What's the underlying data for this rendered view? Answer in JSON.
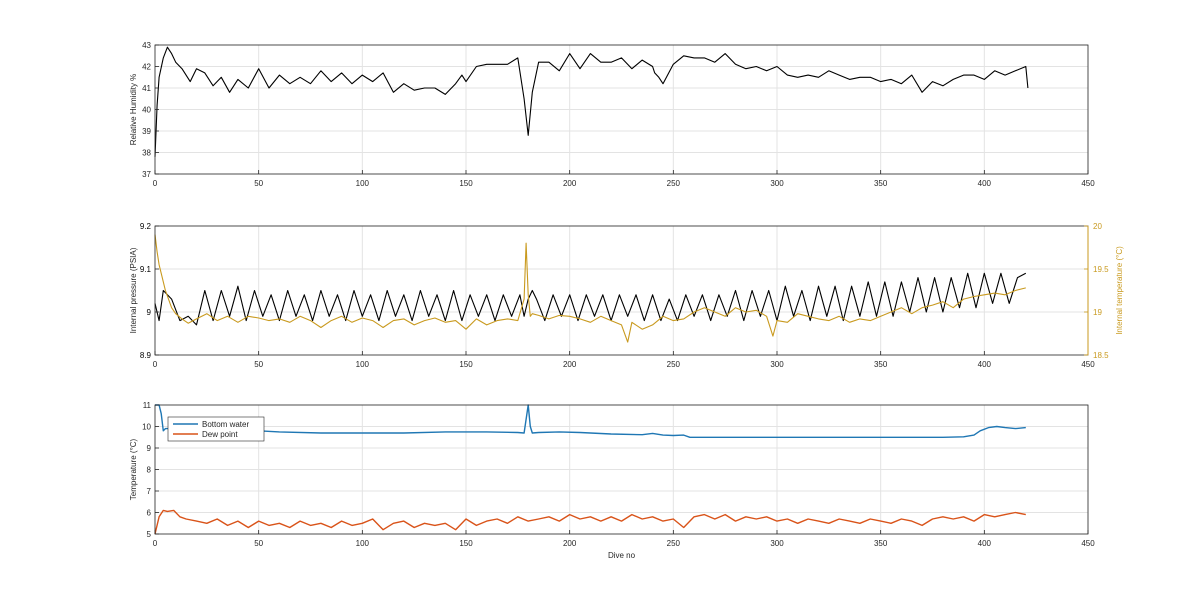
{
  "chart_data": [
    {
      "type": "line",
      "xlabel": "",
      "ylabel": "Relative Humidity %",
      "xlim": [
        0,
        450
      ],
      "ylim": [
        37,
        43
      ],
      "x_ticks": [
        0,
        50,
        100,
        150,
        200,
        250,
        300,
        350,
        400,
        450
      ],
      "y_ticks": [
        37,
        38,
        39,
        40,
        41,
        42,
        43
      ],
      "grid": true,
      "series": [
        {
          "color": "#000000",
          "x": [
            0,
            1,
            2,
            4,
            6,
            8,
            10,
            13,
            17,
            20,
            24,
            28,
            32,
            36,
            40,
            45,
            50,
            55,
            60,
            65,
            70,
            75,
            80,
            85,
            90,
            95,
            100,
            105,
            110,
            115,
            120,
            125,
            130,
            135,
            140,
            145,
            148,
            150,
            155,
            160,
            165,
            170,
            175,
            178,
            180,
            182,
            185,
            190,
            195,
            200,
            205,
            210,
            215,
            220,
            225,
            230,
            235,
            240,
            241,
            243,
            245,
            250,
            255,
            260,
            265,
            270,
            275,
            280,
            285,
            290,
            295,
            300,
            305,
            310,
            315,
            320,
            325,
            330,
            335,
            340,
            345,
            350,
            355,
            360,
            365,
            370,
            375,
            380,
            385,
            390,
            395,
            400,
            405,
            410,
            415,
            420,
            421
          ],
          "y": [
            37.8,
            40.2,
            41.5,
            42.4,
            42.9,
            42.6,
            42.2,
            41.9,
            41.3,
            41.9,
            41.7,
            41.1,
            41.5,
            40.8,
            41.4,
            41.0,
            41.9,
            41.0,
            41.6,
            41.2,
            41.5,
            41.2,
            41.8,
            41.3,
            41.7,
            41.2,
            41.6,
            41.3,
            41.7,
            40.8,
            41.2,
            40.9,
            41.0,
            41.0,
            40.7,
            41.2,
            41.6,
            41.3,
            42.0,
            42.1,
            42.1,
            42.1,
            42.4,
            40.5,
            38.8,
            40.8,
            42.2,
            42.2,
            41.8,
            42.6,
            41.9,
            42.6,
            42.2,
            42.2,
            42.4,
            41.9,
            42.3,
            42.0,
            41.7,
            41.5,
            41.2,
            42.1,
            42.5,
            42.4,
            42.4,
            42.2,
            42.6,
            42.1,
            41.9,
            42.0,
            41.8,
            42.0,
            41.6,
            41.5,
            41.6,
            41.5,
            41.8,
            41.6,
            41.4,
            41.5,
            41.5,
            41.3,
            41.4,
            41.2,
            41.6,
            40.8,
            41.3,
            41.1,
            41.4,
            41.6,
            41.6,
            41.4,
            41.8,
            41.6,
            41.8,
            42.0,
            41.0
          ]
        }
      ]
    },
    {
      "type": "line",
      "xlabel": "",
      "ylabel": "Internal pressure (PSIA)",
      "ylabel_right": "Internal temperature (°C)",
      "xlim": [
        0,
        450
      ],
      "ylim": [
        8.9,
        9.2
      ],
      "ylim_right": [
        18.5,
        20
      ],
      "x_ticks": [
        0,
        50,
        100,
        150,
        200,
        250,
        300,
        350,
        400,
        450
      ],
      "y_ticks": [
        "8.9",
        "9",
        "9.1",
        "9.2"
      ],
      "y_ticks_right": [
        "18.5",
        "19",
        "19.5",
        "20"
      ],
      "grid": true,
      "series": [
        {
          "color": "#000000",
          "axis": "left",
          "x": [
            0,
            2,
            4,
            8,
            12,
            16,
            20,
            24,
            28,
            32,
            36,
            40,
            44,
            48,
            52,
            56,
            60,
            64,
            68,
            72,
            76,
            80,
            84,
            88,
            92,
            96,
            100,
            104,
            108,
            112,
            116,
            120,
            124,
            128,
            132,
            136,
            140,
            144,
            148,
            152,
            156,
            160,
            164,
            168,
            172,
            176,
            178,
            180,
            182,
            184,
            188,
            192,
            196,
            200,
            204,
            208,
            212,
            216,
            220,
            224,
            228,
            232,
            236,
            240,
            244,
            248,
            252,
            256,
            260,
            264,
            268,
            272,
            276,
            280,
            284,
            288,
            292,
            296,
            300,
            304,
            308,
            312,
            316,
            320,
            324,
            328,
            332,
            336,
            340,
            344,
            348,
            352,
            356,
            360,
            364,
            368,
            372,
            376,
            380,
            384,
            388,
            392,
            396,
            400,
            404,
            408,
            412,
            416,
            420
          ],
          "y": [
            9.02,
            8.98,
            9.05,
            9.03,
            8.98,
            8.99,
            8.97,
            9.05,
            8.98,
            9.05,
            8.99,
            9.06,
            8.98,
            9.05,
            8.99,
            9.04,
            8.98,
            9.05,
            8.99,
            9.04,
            8.98,
            9.05,
            8.99,
            9.04,
            8.98,
            9.05,
            8.99,
            9.04,
            8.98,
            9.05,
            8.99,
            9.04,
            8.98,
            9.05,
            8.99,
            9.04,
            8.98,
            9.05,
            8.98,
            9.04,
            8.99,
            9.04,
            8.98,
            9.04,
            8.99,
            9.04,
            8.99,
            9.03,
            9.05,
            9.03,
            8.98,
            9.04,
            8.99,
            9.04,
            8.98,
            9.04,
            8.99,
            9.04,
            8.98,
            9.04,
            8.99,
            9.04,
            8.98,
            9.04,
            8.98,
            9.03,
            8.98,
            9.04,
            8.99,
            9.04,
            8.98,
            9.04,
            8.99,
            9.05,
            8.98,
            9.05,
            8.99,
            9.05,
            8.98,
            9.06,
            8.99,
            9.05,
            8.98,
            9.06,
            8.99,
            9.06,
            8.98,
            9.06,
            8.99,
            9.07,
            8.99,
            9.07,
            8.99,
            9.07,
            9.0,
            9.08,
            9.0,
            9.08,
            9.0,
            9.08,
            9.01,
            9.09,
            9.01,
            9.09,
            9.02,
            9.09,
            9.02,
            9.08,
            9.09
          ]
        },
        {
          "color": "#c99a1f",
          "axis": "right",
          "x": [
            0,
            1,
            2,
            3,
            5,
            8,
            10,
            13,
            16,
            20,
            25,
            30,
            35,
            40,
            45,
            50,
            55,
            60,
            65,
            70,
            75,
            80,
            85,
            90,
            95,
            100,
            105,
            110,
            115,
            120,
            125,
            130,
            135,
            140,
            145,
            150,
            155,
            160,
            165,
            170,
            175,
            178,
            179,
            180,
            181,
            182,
            185,
            190,
            195,
            200,
            205,
            210,
            215,
            220,
            225,
            228,
            230,
            235,
            240,
            245,
            250,
            255,
            260,
            265,
            270,
            275,
            280,
            285,
            290,
            295,
            298,
            300,
            305,
            310,
            315,
            320,
            325,
            330,
            335,
            340,
            345,
            350,
            355,
            360,
            365,
            370,
            375,
            380,
            385,
            390,
            395,
            400,
            405,
            410,
            415,
            420
          ],
          "y": [
            19.9,
            19.7,
            19.55,
            19.45,
            19.25,
            19.05,
            18.98,
            18.92,
            18.87,
            18.92,
            18.98,
            18.9,
            18.95,
            18.88,
            18.95,
            18.93,
            18.9,
            18.92,
            18.88,
            18.95,
            18.9,
            18.82,
            18.9,
            18.95,
            18.88,
            18.93,
            18.9,
            18.82,
            18.9,
            18.92,
            18.85,
            18.9,
            18.93,
            18.88,
            18.9,
            18.8,
            18.92,
            18.85,
            18.9,
            18.92,
            18.9,
            19.15,
            19.8,
            19.2,
            18.95,
            18.98,
            18.96,
            18.92,
            18.96,
            18.95,
            18.92,
            18.88,
            18.95,
            18.9,
            18.85,
            18.65,
            18.88,
            18.8,
            18.85,
            18.95,
            18.9,
            18.92,
            19.0,
            19.05,
            19.0,
            18.95,
            19.05,
            19.0,
            19.02,
            18.95,
            18.72,
            18.9,
            18.88,
            18.98,
            18.95,
            18.92,
            18.9,
            18.95,
            18.88,
            18.92,
            18.9,
            18.95,
            19.0,
            19.05,
            18.98,
            19.05,
            19.08,
            19.12,
            19.05,
            19.15,
            19.18,
            19.2,
            19.22,
            19.2,
            19.25,
            19.28
          ]
        }
      ]
    },
    {
      "type": "line",
      "xlabel": "Dive no",
      "ylabel": "Temperature (°C)",
      "xlim": [
        0,
        450
      ],
      "ylim": [
        5,
        11
      ],
      "x_ticks": [
        0,
        50,
        100,
        150,
        200,
        250,
        300,
        350,
        400,
        450
      ],
      "y_ticks": [
        5,
        6,
        7,
        8,
        9,
        10,
        11
      ],
      "grid": true,
      "legend": "top-left",
      "series": [
        {
          "name": "Bottom water",
          "color": "#1f77b4",
          "x": [
            0,
            2,
            3,
            4,
            5,
            8,
            15,
            25,
            40,
            50,
            60,
            80,
            100,
            120,
            140,
            160,
            175,
            178,
            180,
            181,
            182,
            185,
            195,
            205,
            220,
            235,
            240,
            245,
            250,
            255,
            258,
            265,
            280,
            300,
            320,
            340,
            360,
            380,
            390,
            395,
            398,
            402,
            406,
            410,
            415,
            420
          ],
          "y": [
            11.0,
            11.0,
            10.6,
            9.8,
            9.9,
            9.9,
            9.85,
            9.85,
            9.85,
            9.8,
            9.75,
            9.7,
            9.7,
            9.7,
            9.75,
            9.75,
            9.72,
            9.7,
            11.0,
            10.0,
            9.7,
            9.72,
            9.75,
            9.72,
            9.65,
            9.62,
            9.68,
            9.6,
            9.58,
            9.6,
            9.5,
            9.5,
            9.5,
            9.5,
            9.5,
            9.5,
            9.5,
            9.5,
            9.52,
            9.6,
            9.8,
            9.95,
            10.0,
            9.95,
            9.9,
            9.95
          ]
        },
        {
          "name": "Dew point",
          "color": "#d95319",
          "x": [
            0,
            2,
            4,
            6,
            9,
            12,
            15,
            20,
            25,
            30,
            35,
            40,
            45,
            50,
            55,
            60,
            65,
            70,
            75,
            80,
            85,
            90,
            95,
            100,
            105,
            110,
            115,
            120,
            125,
            130,
            135,
            140,
            145,
            150,
            155,
            160,
            165,
            170,
            175,
            180,
            185,
            190,
            195,
            200,
            205,
            210,
            215,
            220,
            225,
            230,
            235,
            240,
            245,
            250,
            255,
            260,
            265,
            270,
            275,
            280,
            285,
            290,
            295,
            300,
            305,
            310,
            315,
            320,
            325,
            330,
            335,
            340,
            345,
            350,
            355,
            360,
            365,
            370,
            375,
            380,
            385,
            390,
            395,
            400,
            405,
            410,
            415,
            420
          ],
          "y": [
            5.0,
            5.8,
            6.1,
            6.05,
            6.1,
            5.8,
            5.7,
            5.6,
            5.5,
            5.7,
            5.4,
            5.6,
            5.3,
            5.6,
            5.4,
            5.5,
            5.3,
            5.6,
            5.4,
            5.5,
            5.3,
            5.6,
            5.4,
            5.5,
            5.7,
            5.2,
            5.5,
            5.6,
            5.3,
            5.5,
            5.4,
            5.5,
            5.2,
            5.7,
            5.4,
            5.6,
            5.7,
            5.5,
            5.8,
            5.6,
            5.7,
            5.8,
            5.6,
            5.9,
            5.7,
            5.8,
            5.6,
            5.8,
            5.6,
            5.9,
            5.7,
            5.8,
            5.6,
            5.7,
            5.3,
            5.8,
            5.9,
            5.7,
            5.9,
            5.6,
            5.8,
            5.7,
            5.8,
            5.6,
            5.7,
            5.5,
            5.7,
            5.6,
            5.5,
            5.7,
            5.6,
            5.5,
            5.7,
            5.6,
            5.5,
            5.7,
            5.6,
            5.4,
            5.7,
            5.8,
            5.7,
            5.8,
            5.6,
            5.9,
            5.8,
            5.9,
            6.0,
            5.9
          ]
        }
      ]
    }
  ]
}
